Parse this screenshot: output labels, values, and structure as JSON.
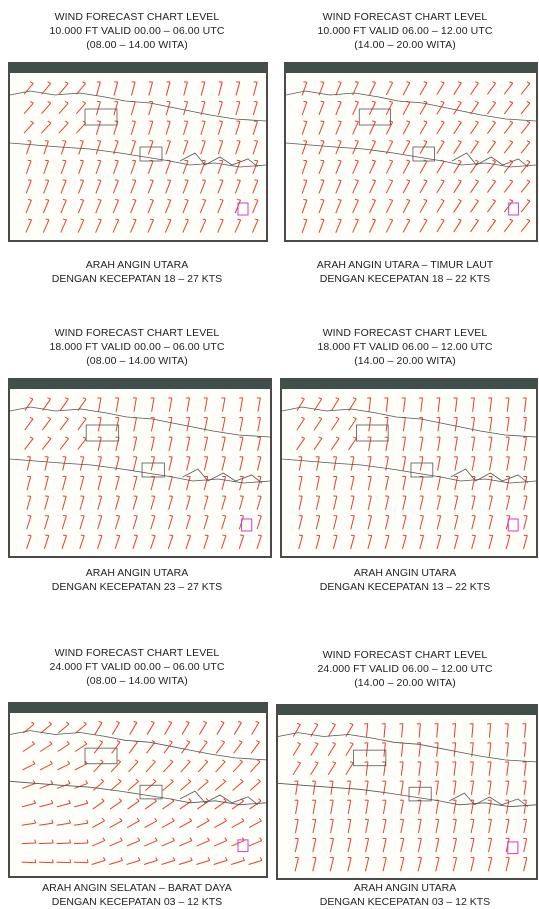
{
  "panels": [
    {
      "title": [
        "WIND FORECAST CHART LEVEL",
        "10.000 FT VALID 00.00 – 06.00 UTC",
        "(08.00 – 14.00 WITA)"
      ],
      "caption": [
        "ARAH ANGIN UTARA",
        "DENGAN KECEPATAN 18 – 27 KTS"
      ],
      "barb_angle_deg": -70,
      "barb_pattern": "north"
    },
    {
      "title": [
        "WIND FORECAST CHART LEVEL",
        "10.000 FT VALID 06.00 – 12.00 UTC",
        "(14.00 – 20.00 WITA)"
      ],
      "caption": [
        "ARAH ANGIN UTARA – TIMUR LAUT",
        "DENGAN KECEPATAN 18 – 22 KTS"
      ],
      "barb_angle_deg": -60,
      "barb_pattern": "northeast"
    },
    {
      "title": [
        "WIND FORECAST CHART LEVEL",
        "18.000 FT VALID 00.00 – 06.00 UTC",
        "(08.00 – 14.00 WITA)"
      ],
      "caption": [
        "ARAH ANGIN UTARA",
        "DENGAN KECEPATAN 23 – 27 KTS"
      ],
      "barb_angle_deg": -75,
      "barb_pattern": "north"
    },
    {
      "title": [
        "WIND FORECAST CHART LEVEL",
        "18.000 FT VALID 06.00 – 12.00 UTC",
        "(14.00 – 20.00 WITA)"
      ],
      "caption": [
        "ARAH ANGIN UTARA",
        "DENGAN KECEPATAN 13 – 22 KTS"
      ],
      "barb_angle_deg": -78,
      "barb_pattern": "north"
    },
    {
      "title": [
        "WIND FORECAST CHART LEVEL",
        "24.000 FT VALID 00.00 – 06.00 UTC",
        "(08.00 – 14.00 WITA)"
      ],
      "caption": [
        "ARAH ANGIN SELATAN – BARAT DAYA",
        "DENGAN KECEPATAN 03 – 12 KTS"
      ],
      "barb_angle_deg": -35,
      "barb_pattern": "southwest"
    },
    {
      "title": [
        "WIND FORECAST CHART LEVEL",
        "24.000 FT VALID 06.00 – 12.00 UTC",
        "(14.00 – 20.00 WITA)"
      ],
      "caption": [
        "ARAH ANGIN UTARA",
        "DENGAN KECEPATAN 03 – 12 KTS"
      ],
      "barb_angle_deg": -80,
      "barb_pattern": "north"
    }
  ],
  "colors": {
    "barb": "#e0403a",
    "coast": "#555555",
    "marker": "#d040c0",
    "frame": "#4a4a4a",
    "titlebar": "#3f4f4a"
  }
}
